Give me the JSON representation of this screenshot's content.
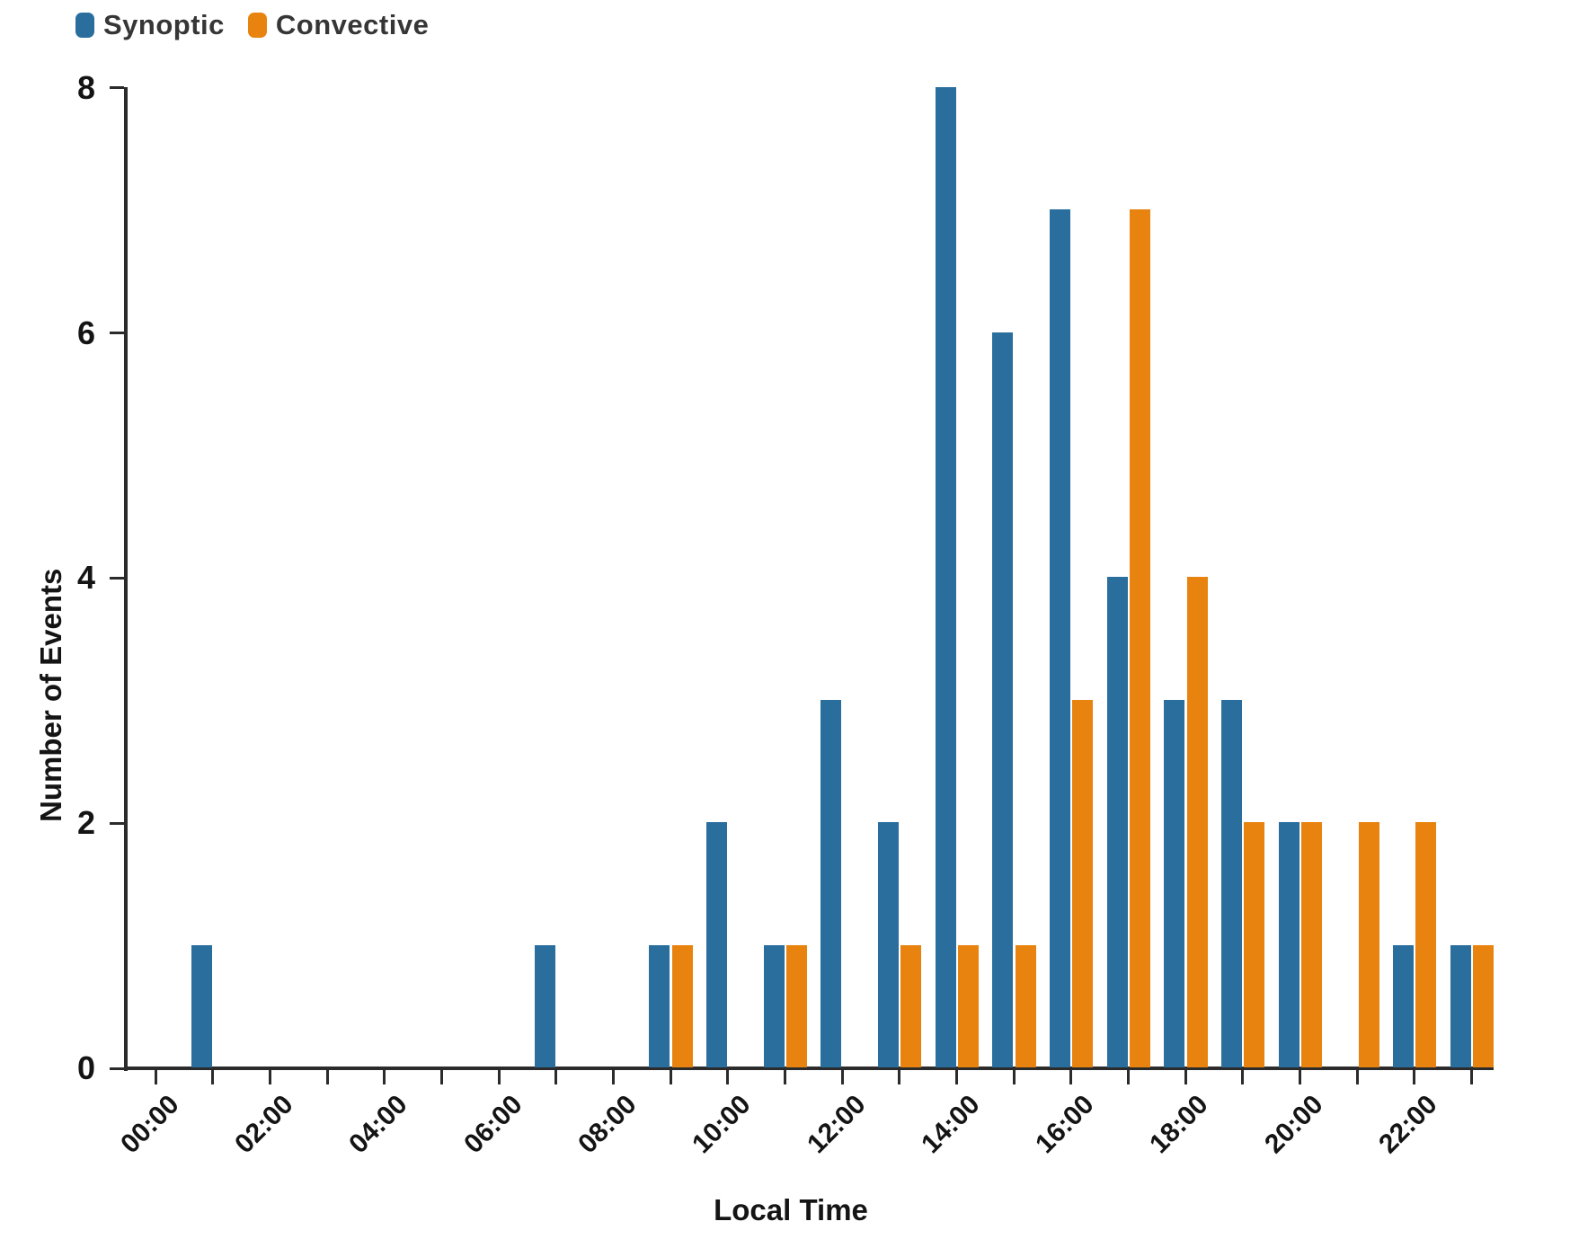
{
  "legend": {
    "items": [
      {
        "label": "Synoptic",
        "color": "#2a6e9e"
      },
      {
        "label": "Convective",
        "color": "#e8830f"
      }
    ]
  },
  "chart_data": {
    "type": "bar",
    "title": "",
    "xlabel": "Local Time",
    "ylabel": "Number of Events",
    "categories": [
      "00:00",
      "01:00",
      "02:00",
      "03:00",
      "04:00",
      "05:00",
      "06:00",
      "07:00",
      "08:00",
      "09:00",
      "10:00",
      "11:00",
      "12:00",
      "13:00",
      "14:00",
      "15:00",
      "16:00",
      "17:00",
      "18:00",
      "19:00",
      "20:00",
      "21:00",
      "22:00",
      "23:00"
    ],
    "x_tick_labels_shown": [
      "00:00",
      "02:00",
      "04:00",
      "06:00",
      "08:00",
      "10:00",
      "12:00",
      "14:00",
      "16:00",
      "18:00",
      "20:00",
      "22:00"
    ],
    "series": [
      {
        "name": "Synoptic",
        "color": "#2a6e9e",
        "values": [
          0,
          1,
          0,
          0,
          0,
          0,
          0,
          1,
          0,
          1,
          2,
          1,
          3,
          2,
          8,
          6,
          7,
          4,
          3,
          3,
          2,
          0,
          1,
          1
        ]
      },
      {
        "name": "Convective",
        "color": "#e8830f",
        "values": [
          0,
          0,
          0,
          0,
          0,
          0,
          0,
          0,
          0,
          1,
          0,
          1,
          0,
          1,
          1,
          1,
          3,
          7,
          4,
          2,
          2,
          2,
          2,
          1
        ]
      }
    ],
    "ylim": [
      0,
      8
    ],
    "yticks": [
      0,
      2,
      4,
      6,
      8
    ],
    "grid": false,
    "legend_position": "top-left",
    "axis_color": "#2b2b2b",
    "background_color": "#ffffff"
  }
}
